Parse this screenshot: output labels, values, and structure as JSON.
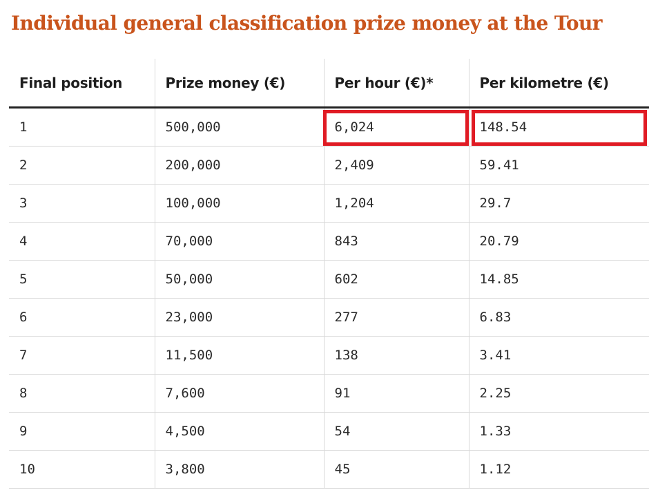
{
  "title": "Individual general classification prize money at the Tour",
  "table": {
    "headers": [
      "Final position",
      "Prize money (€)",
      "Per hour (€)*",
      "Per kilometre (€)"
    ],
    "rows": [
      [
        "1",
        "500,000",
        "6,024",
        "148.54"
      ],
      [
        "2",
        "200,000",
        "2,409",
        "59.41"
      ],
      [
        "3",
        "100,000",
        "1,204",
        "29.7"
      ],
      [
        "4",
        "70,000",
        "843",
        "20.79"
      ],
      [
        "5",
        "50,000",
        "602",
        "14.85"
      ],
      [
        "6",
        "23,000",
        "277",
        "6.83"
      ],
      [
        "7",
        "11,500",
        "138",
        "3.41"
      ],
      [
        "8",
        "7,600",
        "91",
        "2.25"
      ],
      [
        "9",
        "4,500",
        "54",
        "1.33"
      ],
      [
        "10",
        "3,800",
        "45",
        "1.12"
      ]
    ]
  },
  "colors": {
    "title": "#c9541c",
    "highlight": "#e01b24",
    "rule": "#222222",
    "gridline": "#d8d8d8"
  }
}
